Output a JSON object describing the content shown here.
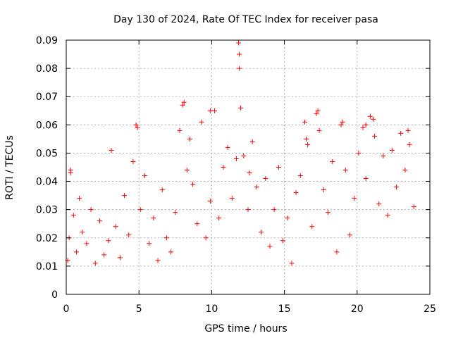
{
  "chart_data": {
    "type": "scatter",
    "title": "Day 130 of 2024, Rate Of TEC Index for receiver pasa",
    "xlabel": "GPS time / hours",
    "ylabel": "ROTI / TECUs",
    "xlim": [
      0,
      25
    ],
    "ylim": [
      0,
      0.09
    ],
    "x_ticks": [
      0,
      5,
      10,
      15,
      20,
      25
    ],
    "y_ticks": [
      0,
      0.01,
      0.02,
      0.03,
      0.04,
      0.05,
      0.06,
      0.07,
      0.08,
      0.09
    ],
    "x_tick_labels": [
      "0",
      "5",
      "10",
      "15",
      "20",
      "25"
    ],
    "y_tick_labels": [
      "0",
      "0.01",
      "0.02",
      "0.03",
      "0.04",
      "0.05",
      "0.06",
      "0.07",
      "0.08",
      "0.09"
    ],
    "grid": true,
    "marker": "plus",
    "color": "#ff0000",
    "series": [
      {
        "x": [
          0.1,
          0.2,
          0.3,
          0.5,
          0.7,
          0.9,
          1.1,
          1.4,
          1.7,
          2.0,
          2.3,
          2.6,
          2.9,
          3.1,
          3.4,
          3.7,
          4.0,
          4.3,
          4.6,
          4.9,
          5.1,
          5.4,
          5.7,
          6.0,
          6.3,
          6.6,
          6.9,
          7.2,
          7.5,
          7.8,
          8.1,
          8.3,
          8.5,
          8.7,
          9.0,
          9.3,
          9.6,
          9.9,
          10.2,
          10.5,
          10.8,
          11.1,
          11.4,
          11.7,
          11.85,
          11.9,
          12.0,
          12.2,
          12.5,
          12.8,
          13.1,
          13.4,
          13.7,
          14.0,
          14.3,
          14.6,
          14.9,
          15.2,
          15.5,
          15.8,
          16.1,
          16.4,
          16.6,
          16.9,
          17.2,
          17.4,
          17.7,
          18.0,
          18.3,
          18.6,
          18.9,
          19.2,
          19.5,
          19.8,
          20.1,
          20.4,
          20.6,
          20.9,
          21.2,
          21.5,
          21.8,
          22.1,
          22.4,
          22.7,
          23.0,
          23.3,
          23.6,
          23.9,
          0.3,
          8.0,
          11.9,
          17.3,
          9.9,
          4.8,
          21.1,
          19.0,
          23.5,
          12.6,
          16.5,
          20.6
        ],
        "y": [
          0.012,
          0.02,
          0.043,
          0.028,
          0.015,
          0.034,
          0.022,
          0.018,
          0.03,
          0.011,
          0.026,
          0.014,
          0.019,
          0.051,
          0.024,
          0.013,
          0.035,
          0.021,
          0.047,
          0.059,
          0.03,
          0.042,
          0.018,
          0.027,
          0.012,
          0.037,
          0.02,
          0.015,
          0.029,
          0.058,
          0.068,
          0.044,
          0.055,
          0.039,
          0.025,
          0.061,
          0.02,
          0.033,
          0.065,
          0.027,
          0.045,
          0.052,
          0.034,
          0.048,
          0.089,
          0.08,
          0.066,
          0.049,
          0.03,
          0.054,
          0.038,
          0.022,
          0.041,
          0.017,
          0.03,
          0.045,
          0.019,
          0.027,
          0.011,
          0.036,
          0.042,
          0.061,
          0.053,
          0.024,
          0.064,
          0.058,
          0.037,
          0.029,
          0.047,
          0.015,
          0.06,
          0.044,
          0.021,
          0.034,
          0.05,
          0.059,
          0.041,
          0.063,
          0.056,
          0.032,
          0.049,
          0.028,
          0.051,
          0.038,
          0.057,
          0.044,
          0.053,
          0.031,
          0.044,
          0.067,
          0.085,
          0.065,
          0.065,
          0.06,
          0.062,
          0.061,
          0.058,
          0.043,
          0.055,
          0.06
        ]
      }
    ]
  }
}
